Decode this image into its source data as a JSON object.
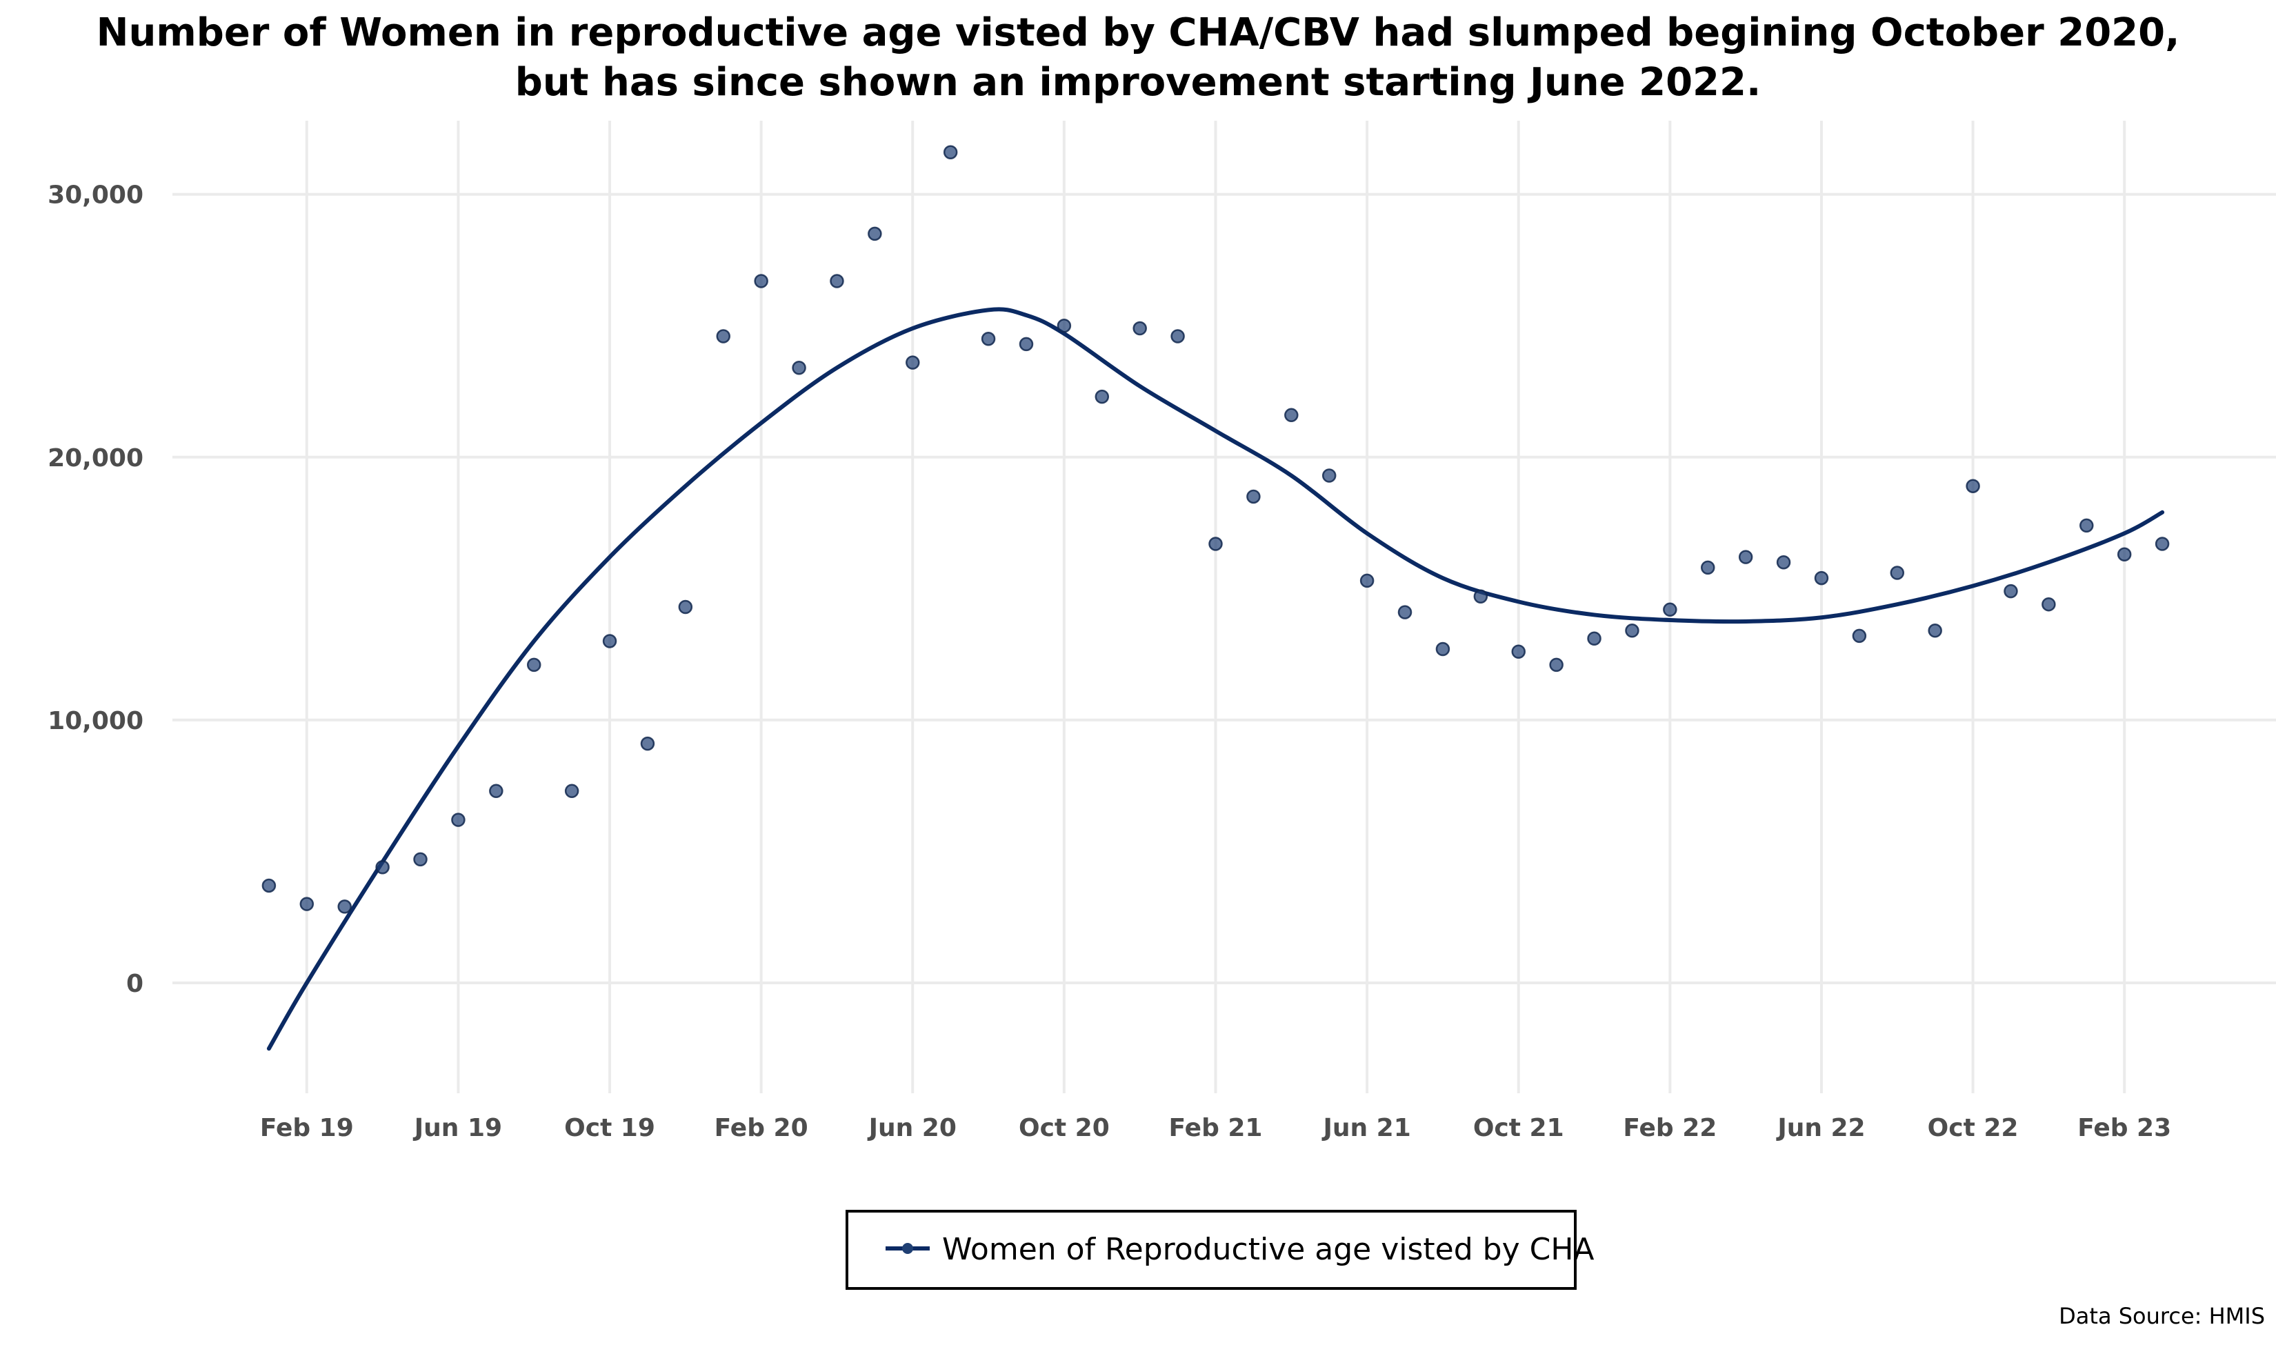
{
  "chart_data": {
    "type": "scatter",
    "title": "Number of Women in reproductive age visted by CHA/CBV had slumped begining October 2020,\nbut has since shown an improvement starting June 2022.",
    "xlabel": "",
    "ylabel": "",
    "x_tick_labels": [
      "Feb 19",
      "Jun 19",
      "Oct 19",
      "Feb 20",
      "Jun 20",
      "Oct 20",
      "Feb 21",
      "Jun 21",
      "Oct 21",
      "Feb 22",
      "Jun 22",
      "Oct 22",
      "Feb 23"
    ],
    "y_ticks": [
      0,
      10000,
      20000,
      30000
    ],
    "y_tick_labels": [
      "0",
      "10,000",
      "20,000",
      "30,000"
    ],
    "ylim": [
      -4200,
      32800
    ],
    "x_range": [
      "2018-12",
      "2023-04"
    ],
    "grid": true,
    "legend_position": "bottom",
    "series": [
      {
        "name": "Women of Reproductive age visted by CHA",
        "color": "#1f3f73",
        "style": "points",
        "points": [
          {
            "x": "2019-01",
            "y": 3700
          },
          {
            "x": "2019-02",
            "y": 3000
          },
          {
            "x": "2019-03",
            "y": 2900
          },
          {
            "x": "2019-04",
            "y": 4400
          },
          {
            "x": "2019-05",
            "y": 4700
          },
          {
            "x": "2019-06",
            "y": 6200
          },
          {
            "x": "2019-07",
            "y": 7300
          },
          {
            "x": "2019-08",
            "y": 12100
          },
          {
            "x": "2019-09",
            "y": 7300
          },
          {
            "x": "2019-10",
            "y": 13000
          },
          {
            "x": "2019-11",
            "y": 9100
          },
          {
            "x": "2019-12",
            "y": 14300
          },
          {
            "x": "2020-01",
            "y": 24600
          },
          {
            "x": "2020-02",
            "y": 26700
          },
          {
            "x": "2020-03",
            "y": 23400
          },
          {
            "x": "2020-04",
            "y": 26700
          },
          {
            "x": "2020-05",
            "y": 28500
          },
          {
            "x": "2020-06",
            "y": 23600
          },
          {
            "x": "2020-07",
            "y": 31600
          },
          {
            "x": "2020-08",
            "y": 24500
          },
          {
            "x": "2020-09",
            "y": 24300
          },
          {
            "x": "2020-10",
            "y": 25000
          },
          {
            "x": "2020-11",
            "y": 22300
          },
          {
            "x": "2020-12",
            "y": 24900
          },
          {
            "x": "2021-01",
            "y": 24600
          },
          {
            "x": "2021-02",
            "y": 16700
          },
          {
            "x": "2021-03",
            "y": 18500
          },
          {
            "x": "2021-04",
            "y": 21600
          },
          {
            "x": "2021-05",
            "y": 19300
          },
          {
            "x": "2021-06",
            "y": 15300
          },
          {
            "x": "2021-07",
            "y": 14100
          },
          {
            "x": "2021-08",
            "y": 12700
          },
          {
            "x": "2021-09",
            "y": 14700
          },
          {
            "x": "2021-10",
            "y": 12600
          },
          {
            "x": "2021-11",
            "y": 12100
          },
          {
            "x": "2021-12",
            "y": 13100
          },
          {
            "x": "2022-01",
            "y": 13400
          },
          {
            "x": "2022-02",
            "y": 14200
          },
          {
            "x": "2022-03",
            "y": 15800
          },
          {
            "x": "2022-04",
            "y": 16200
          },
          {
            "x": "2022-05",
            "y": 16000
          },
          {
            "x": "2022-06",
            "y": 15400
          },
          {
            "x": "2022-07",
            "y": 13200
          },
          {
            "x": "2022-08",
            "y": 15600
          },
          {
            "x": "2022-09",
            "y": 13400
          },
          {
            "x": "2022-10",
            "y": 18900
          },
          {
            "x": "2022-11",
            "y": 14900
          },
          {
            "x": "2022-12",
            "y": 14400
          },
          {
            "x": "2023-01",
            "y": 17400
          },
          {
            "x": "2023-02",
            "y": 16300
          },
          {
            "x": "2023-03",
            "y": 16700
          }
        ]
      },
      {
        "style": "smooth-trend",
        "color": "#0b2a63",
        "points": [
          {
            "x": "2019-01",
            "y": -2500
          },
          {
            "x": "2019-02",
            "y": 0
          },
          {
            "x": "2019-04",
            "y": 4600
          },
          {
            "x": "2019-06",
            "y": 9000
          },
          {
            "x": "2019-08",
            "y": 13000
          },
          {
            "x": "2019-10",
            "y": 16200
          },
          {
            "x": "2019-12",
            "y": 18900
          },
          {
            "x": "2020-02",
            "y": 21300
          },
          {
            "x": "2020-04",
            "y": 23400
          },
          {
            "x": "2020-06",
            "y": 24900
          },
          {
            "x": "2020-08",
            "y": 25600
          },
          {
            "x": "2020-09",
            "y": 25400
          },
          {
            "x": "2020-10",
            "y": 24700
          },
          {
            "x": "2020-12",
            "y": 22700
          },
          {
            "x": "2021-02",
            "y": 21000
          },
          {
            "x": "2021-04",
            "y": 19300
          },
          {
            "x": "2021-06",
            "y": 17100
          },
          {
            "x": "2021-08",
            "y": 15400
          },
          {
            "x": "2021-10",
            "y": 14500
          },
          {
            "x": "2021-12",
            "y": 14000
          },
          {
            "x": "2022-02",
            "y": 13800
          },
          {
            "x": "2022-04",
            "y": 13750
          },
          {
            "x": "2022-06",
            "y": 13900
          },
          {
            "x": "2022-08",
            "y": 14400
          },
          {
            "x": "2022-10",
            "y": 15100
          },
          {
            "x": "2022-12",
            "y": 16000
          },
          {
            "x": "2023-02",
            "y": 17100
          },
          {
            "x": "2023-03",
            "y": 17900
          }
        ]
      }
    ],
    "source_note": "Data Source: HMIS"
  }
}
